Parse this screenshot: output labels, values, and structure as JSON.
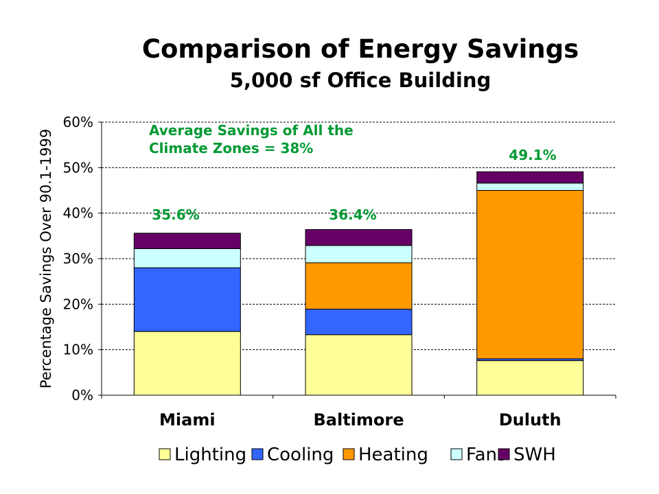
{
  "chart_data": {
    "type": "bar",
    "stacked": true,
    "title": "Comparison of Energy Savings",
    "subtitle": "5,000 sf Office Building",
    "ylabel": "Percentage Savings Over 90.1-1999",
    "xlabel": "",
    "ylim": [
      0,
      60
    ],
    "yticks": [
      "0%",
      "10%",
      "20%",
      "30%",
      "40%",
      "50%",
      "60%"
    ],
    "ytick_values": [
      0,
      10,
      20,
      30,
      40,
      50,
      60
    ],
    "grid": "horizontal dashed",
    "legend_position": "bottom",
    "categories": [
      "Miami",
      "Baltimore",
      "Duluth"
    ],
    "series": [
      {
        "name": "Lighting",
        "color": "#ffff99",
        "values": [
          14.0,
          13.3,
          7.6
        ]
      },
      {
        "name": "Cooling",
        "color": "#3366ff",
        "values": [
          14.0,
          5.6,
          0.4
        ]
      },
      {
        "name": "Heating",
        "color": "#ff9900",
        "values": [
          0.0,
          10.2,
          37.0
        ]
      },
      {
        "name": "Fans",
        "color": "#ccffff",
        "values": [
          4.2,
          3.8,
          1.6
        ]
      },
      {
        "name": "SWH",
        "color": "#660066",
        "values": [
          3.4,
          3.5,
          2.5
        ]
      }
    ],
    "totals": [
      35.6,
      36.4,
      49.1
    ],
    "total_labels": [
      "35.6%",
      "36.4%",
      "49.1%"
    ],
    "annotation": [
      "Average Savings of All the",
      "Climate Zones = 38%"
    ],
    "label_color": "#009933"
  }
}
